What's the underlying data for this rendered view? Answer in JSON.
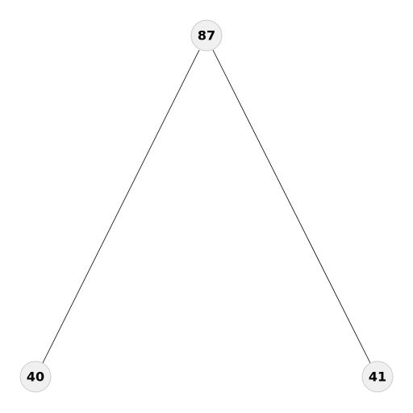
{
  "tree": {
    "nodes": [
      {
        "id": "root",
        "label": "87"
      },
      {
        "id": "left",
        "label": "40"
      },
      {
        "id": "right",
        "label": "41"
      }
    ],
    "edges": [
      {
        "from": "root",
        "to": "left"
      },
      {
        "from": "root",
        "to": "right"
      }
    ]
  },
  "colors": {
    "node_fill": "#f0f0f0",
    "node_stroke": "#cccccc",
    "edge": "#000000",
    "label": "#000000"
  }
}
